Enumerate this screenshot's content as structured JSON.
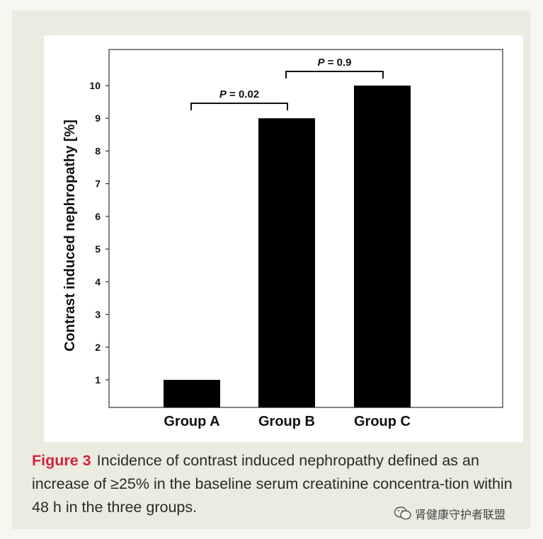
{
  "chart_data": {
    "type": "bar",
    "categories": [
      "Group A",
      "Group B",
      "Group C"
    ],
    "values": [
      1,
      9,
      10
    ],
    "ylabel": "Contrast induced nephropathy [%]",
    "xlabel": "",
    "ylim": [
      0,
      11
    ],
    "yticks": [
      1,
      2,
      3,
      4,
      5,
      6,
      7,
      8,
      9,
      10
    ],
    "annotations": [
      {
        "from": "Group A",
        "to": "Group B",
        "label": "P = 0.02"
      },
      {
        "from": "Group B",
        "to": "Group C",
        "label": "P = 0.9"
      }
    ],
    "bar_color": "#000000",
    "grid": false,
    "legend": "none"
  },
  "caption": {
    "label": "Figure 3",
    "text": "Incidence of contrast induced nephropathy defined as an increase of ≥25% in the baseline serum creatinine concentra-tion within 48 h in the three groups."
  },
  "watermark": {
    "icon": "wechat-icon",
    "text": "肾健康守护者联盟"
  },
  "colors": {
    "panel": "#ecebdf",
    "figure_label": "#d2233c"
  }
}
